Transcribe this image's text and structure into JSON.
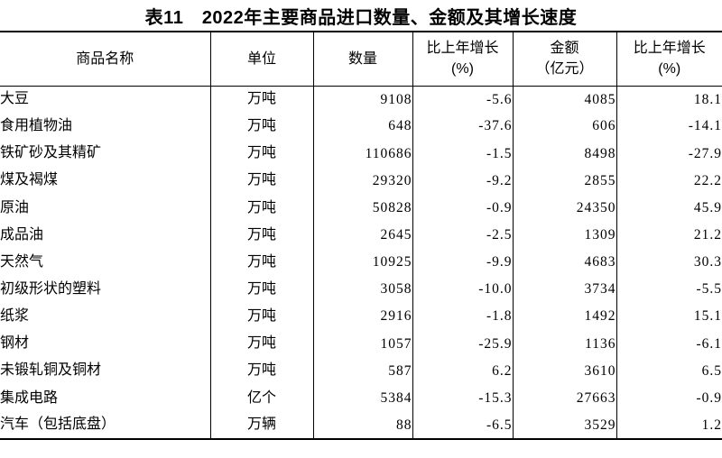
{
  "page": {
    "title": "表11　2022年主要商品进口数量、金额及其增长速度"
  },
  "table": {
    "columns": [
      {
        "label": "商品名称",
        "sub": ""
      },
      {
        "label": "单位",
        "sub": ""
      },
      {
        "label": "数量",
        "sub": ""
      },
      {
        "label": "比上年增长",
        "sub": "(%)"
      },
      {
        "label": "金额",
        "sub": "（亿元）"
      },
      {
        "label": "比上年增长",
        "sub": "(%)"
      }
    ],
    "rows": [
      [
        "大豆",
        "万吨",
        "9108",
        "-5.6",
        "4085",
        "18.1"
      ],
      [
        "食用植物油",
        "万吨",
        "648",
        "-37.6",
        "606",
        "-14.1"
      ],
      [
        "铁矿砂及其精矿",
        "万吨",
        "110686",
        "-1.5",
        "8498",
        "-27.9"
      ],
      [
        "煤及褐煤",
        "万吨",
        "29320",
        "-9.2",
        "2855",
        "22.2"
      ],
      [
        "原油",
        "万吨",
        "50828",
        "-0.9",
        "24350",
        "45.9"
      ],
      [
        "成品油",
        "万吨",
        "2645",
        "-2.5",
        "1309",
        "21.2"
      ],
      [
        "天然气",
        "万吨",
        "10925",
        "-9.9",
        "4683",
        "30.3"
      ],
      [
        "初级形状的塑料",
        "万吨",
        "3058",
        "-10.0",
        "3734",
        "-5.5"
      ],
      [
        "纸浆",
        "万吨",
        "2916",
        "-1.8",
        "1492",
        "15.1"
      ],
      [
        "钢材",
        "万吨",
        "1057",
        "-25.9",
        "1136",
        "-6.1"
      ],
      [
        "未锻轧铜及铜材",
        "万吨",
        "587",
        "6.2",
        "3610",
        "6.5"
      ],
      [
        "集成电路",
        "亿个",
        "5384",
        "-15.3",
        "27663",
        "-0.9"
      ],
      [
        "汽车（包括底盘）",
        "万辆",
        "88",
        "-6.5",
        "3529",
        "1.2"
      ]
    ]
  }
}
